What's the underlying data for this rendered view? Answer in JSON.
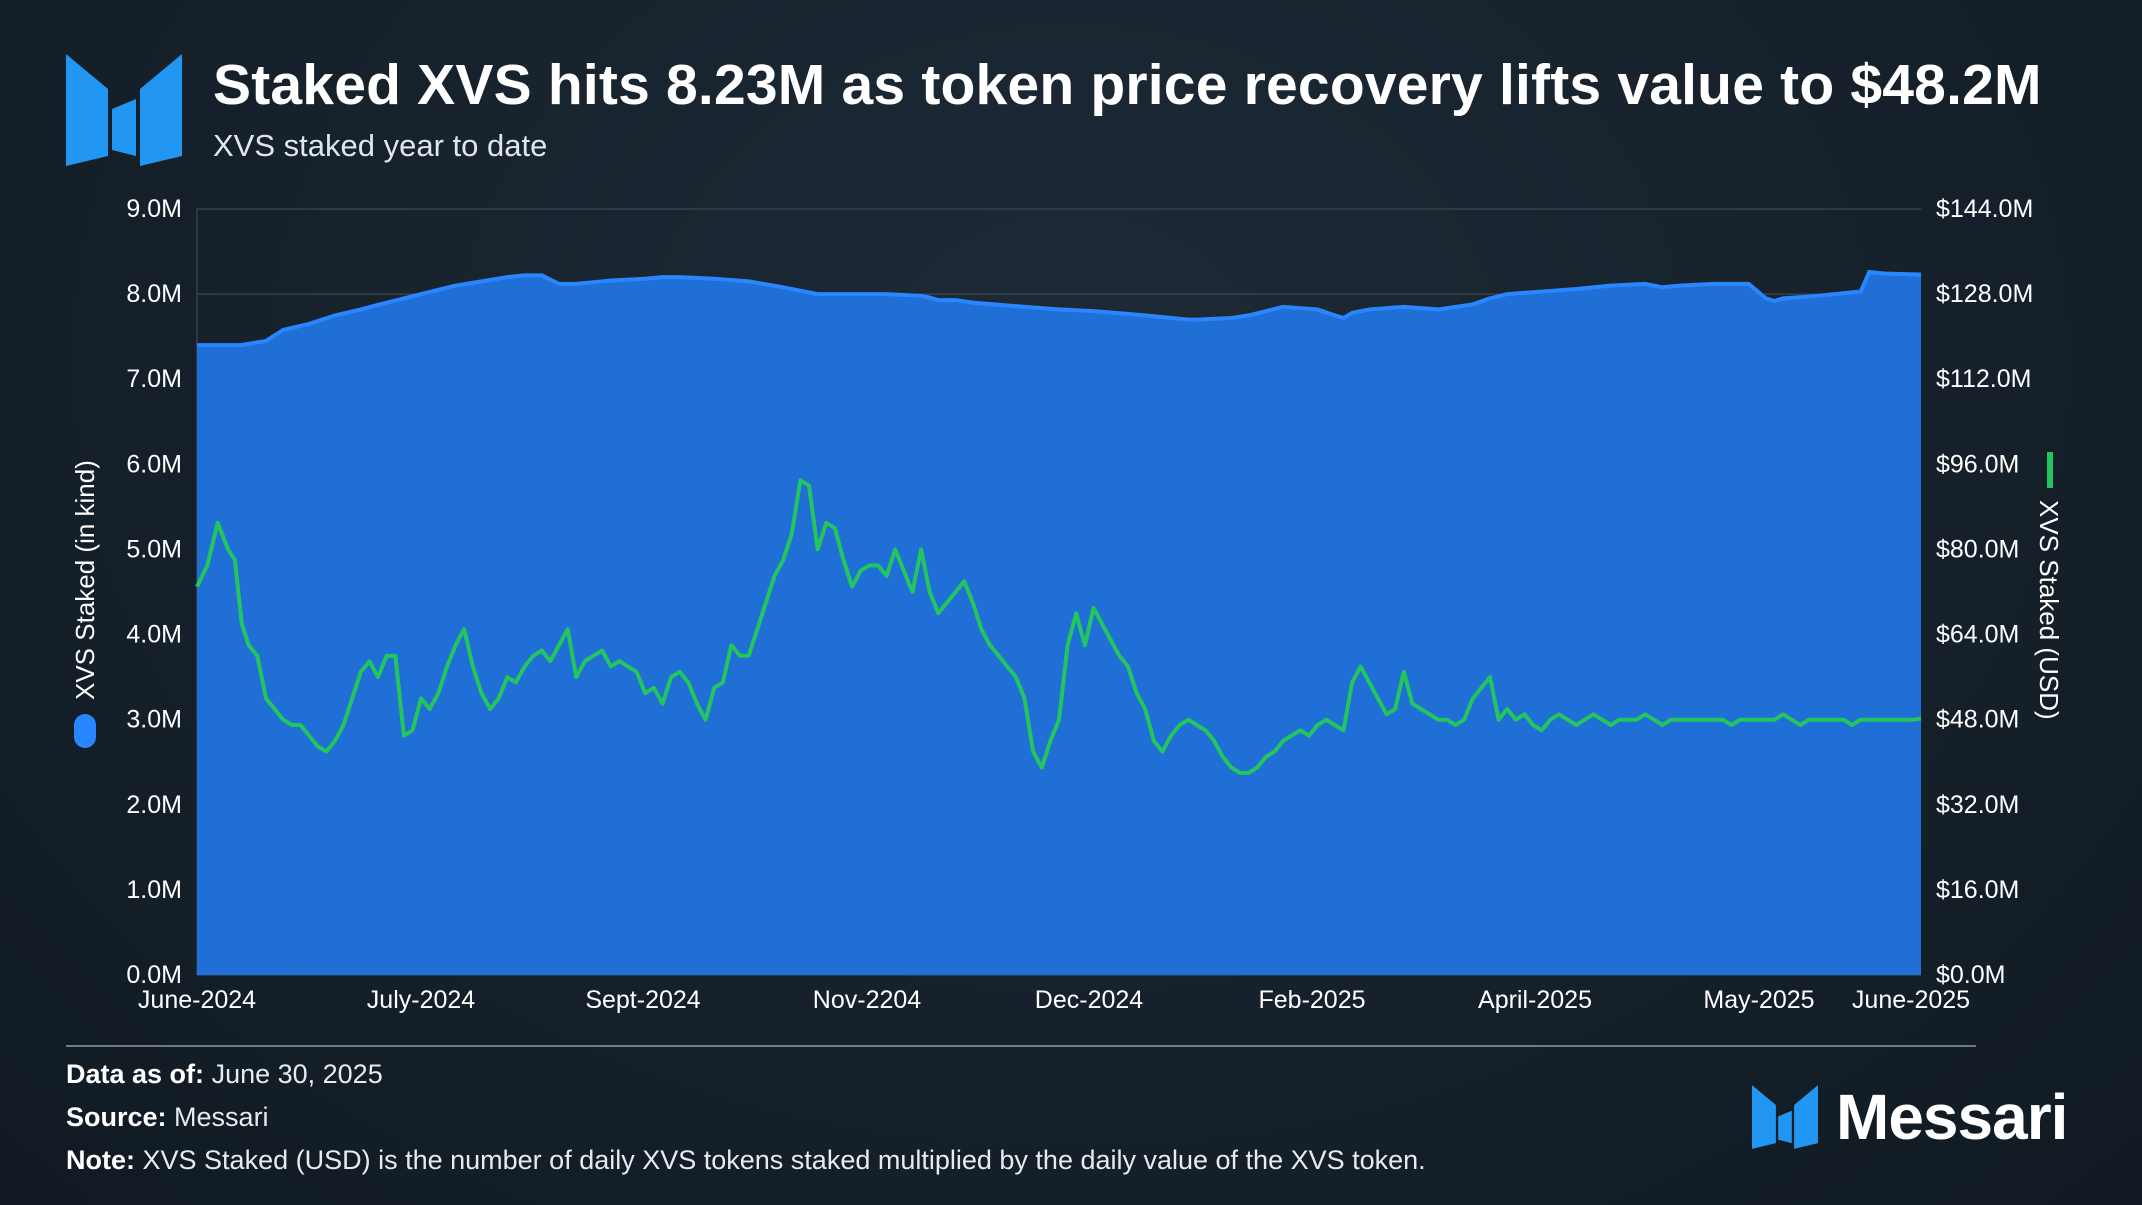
{
  "header": {
    "title": "Staked XVS hits 8.23M as token price recovery lifts value to $48.2M",
    "subtitle": "XVS staked year to date"
  },
  "footer": {
    "data_as_of_label": "Data as of:",
    "data_as_of_value": "June 30, 2025",
    "source_label": "Source:",
    "source_value": "Messari",
    "note_label": "Note:",
    "note_value": "XVS Staked (USD) is the number of daily XVS tokens staked multiplied by the daily value of the XVS token.",
    "brand_name": "Messari",
    "brand_logo_icon": "messari-logo-icon"
  },
  "colors": {
    "background": "#17222c",
    "area_fill": "#1f6fd6",
    "area_line": "#2a86ff",
    "usd_line": "#23c55e",
    "brand_blue": "#2196f3"
  },
  "chart_data": {
    "type": "area",
    "xlabels": [
      "June-2024",
      "July-2024",
      "Sept-2024",
      "Nov-2204",
      "Dec-2024",
      "Feb-2025",
      "April-2025",
      "May-2025",
      "June-2025"
    ],
    "y_left": {
      "label": "XVS Staked (in kind)",
      "ylim": [
        0,
        9000000
      ],
      "ticks": [
        "0.0M",
        "1.0M",
        "2.0M",
        "3.0M",
        "4.0M",
        "5.0M",
        "6.0M",
        "7.0M",
        "8.0M",
        "9.0M"
      ]
    },
    "y_right": {
      "label": "XVS Staked (USD)",
      "ylim": [
        0,
        144000000
      ],
      "ticks": [
        "$0.0M",
        "$16.0M",
        "$32.0M",
        "$48.0M",
        "$64.0M",
        "$80.0M",
        "$96.0M",
        "$112.0M",
        "$128.0M",
        "$144.0M"
      ]
    },
    "legend": [
      {
        "series": "XVS Staked (in kind)",
        "position": "left axis",
        "color": "#2a86ff"
      },
      {
        "series": "XVS Staked (USD)",
        "position": "right axis",
        "color": "#23c55e"
      }
    ],
    "grid": true,
    "series": [
      {
        "name": "XVS Staked (in kind)",
        "axis": "left",
        "type": "area",
        "x": [
          0,
          0.025,
          0.04,
          0.05,
          0.065,
          0.08,
          0.095,
          0.11,
          0.13,
          0.15,
          0.165,
          0.18,
          0.19,
          0.2,
          0.21,
          0.22,
          0.23,
          0.24,
          0.26,
          0.27,
          0.28,
          0.3,
          0.32,
          0.34,
          0.36,
          0.38,
          0.4,
          0.42,
          0.425,
          0.43,
          0.44,
          0.45,
          0.48,
          0.5,
          0.52,
          0.55,
          0.56,
          0.575,
          0.58,
          0.6,
          0.61,
          0.62,
          0.63,
          0.65,
          0.66,
          0.665,
          0.67,
          0.68,
          0.7,
          0.72,
          0.74,
          0.75,
          0.76,
          0.78,
          0.8,
          0.82,
          0.84,
          0.85,
          0.86,
          0.88,
          0.9,
          0.91,
          0.915,
          0.92,
          0.94,
          0.95,
          0.96,
          0.965,
          0.97,
          0.98,
          1.0
        ],
        "y": [
          7.4,
          7.4,
          7.45,
          7.58,
          7.65,
          7.75,
          7.82,
          7.9,
          8.0,
          8.1,
          8.15,
          8.2,
          8.22,
          8.22,
          8.12,
          8.12,
          8.14,
          8.16,
          8.18,
          8.2,
          8.2,
          8.18,
          8.15,
          8.08,
          8.0,
          8.0,
          8.0,
          7.98,
          7.96,
          7.93,
          7.93,
          7.9,
          7.85,
          7.82,
          7.8,
          7.75,
          7.73,
          7.7,
          7.7,
          7.72,
          7.75,
          7.8,
          7.85,
          7.82,
          7.75,
          7.72,
          7.78,
          7.82,
          7.85,
          7.82,
          7.88,
          7.95,
          8.0,
          8.03,
          8.06,
          8.1,
          8.12,
          8.08,
          8.1,
          8.12,
          8.12,
          7.95,
          7.92,
          7.95,
          7.98,
          8.0,
          8.02,
          8.03,
          8.26,
          8.24,
          8.23
        ]
      },
      {
        "name": "XVS Staked (USD)",
        "axis": "right",
        "type": "line",
        "x": [
          0,
          0.006,
          0.012,
          0.018,
          0.022,
          0.026,
          0.03,
          0.035,
          0.04,
          0.045,
          0.05,
          0.055,
          0.06,
          0.065,
          0.07,
          0.075,
          0.08,
          0.085,
          0.09,
          0.095,
          0.1,
          0.105,
          0.11,
          0.115,
          0.12,
          0.125,
          0.13,
          0.135,
          0.14,
          0.145,
          0.15,
          0.155,
          0.16,
          0.165,
          0.17,
          0.175,
          0.18,
          0.185,
          0.19,
          0.195,
          0.2,
          0.205,
          0.21,
          0.215,
          0.22,
          0.225,
          0.23,
          0.235,
          0.24,
          0.245,
          0.25,
          0.255,
          0.26,
          0.265,
          0.27,
          0.275,
          0.28,
          0.285,
          0.29,
          0.295,
          0.3,
          0.305,
          0.31,
          0.315,
          0.32,
          0.325,
          0.33,
          0.335,
          0.34,
          0.345,
          0.35,
          0.355,
          0.36,
          0.365,
          0.37,
          0.375,
          0.38,
          0.385,
          0.39,
          0.395,
          0.4,
          0.405,
          0.41,
          0.415,
          0.42,
          0.425,
          0.43,
          0.435,
          0.44,
          0.445,
          0.45,
          0.455,
          0.46,
          0.465,
          0.47,
          0.475,
          0.48,
          0.485,
          0.49,
          0.495,
          0.5,
          0.505,
          0.51,
          0.515,
          0.52,
          0.525,
          0.53,
          0.535,
          0.54,
          0.545,
          0.55,
          0.555,
          0.56,
          0.565,
          0.57,
          0.575,
          0.58,
          0.585,
          0.59,
          0.595,
          0.6,
          0.605,
          0.61,
          0.615,
          0.62,
          0.625,
          0.63,
          0.635,
          0.64,
          0.645,
          0.65,
          0.655,
          0.66,
          0.665,
          0.67,
          0.675,
          0.68,
          0.685,
          0.69,
          0.695,
          0.7,
          0.705,
          0.71,
          0.715,
          0.72,
          0.725,
          0.73,
          0.735,
          0.74,
          0.745,
          0.75,
          0.755,
          0.76,
          0.765,
          0.77,
          0.775,
          0.78,
          0.785,
          0.79,
          0.795,
          0.8,
          0.805,
          0.81,
          0.815,
          0.82,
          0.825,
          0.83,
          0.835,
          0.84,
          0.845,
          0.85,
          0.855,
          0.86,
          0.865,
          0.87,
          0.875,
          0.88,
          0.885,
          0.89,
          0.895,
          0.9,
          0.905,
          0.91,
          0.915,
          0.92,
          0.925,
          0.93,
          0.935,
          0.94,
          0.945,
          0.95,
          0.955,
          0.96,
          0.965,
          0.97,
          0.975,
          0.98,
          0.985,
          0.99,
          0.995,
          1.0
        ],
        "y": [
          73,
          77,
          85,
          80,
          78,
          66,
          62,
          60,
          52,
          50,
          48,
          47,
          47,
          45,
          43,
          42,
          44,
          47,
          52,
          57,
          59,
          56,
          60,
          60,
          45,
          46,
          52,
          50,
          53,
          58,
          62,
          65,
          58,
          53,
          50,
          52,
          56,
          55,
          58,
          60,
          61,
          59,
          62,
          65,
          56,
          59,
          60,
          61,
          58,
          59,
          58,
          57,
          53,
          54,
          51,
          56,
          57,
          55,
          51,
          48,
          54,
          55,
          62,
          60,
          60,
          65,
          70,
          75,
          78,
          83,
          93,
          92,
          80,
          85,
          84,
          78,
          73,
          76,
          77,
          77,
          75,
          80,
          76,
          72,
          80,
          72,
          68,
          70,
          72,
          74,
          70,
          65,
          62,
          60,
          58,
          56,
          52,
          42,
          39,
          44,
          48,
          62,
          68,
          62,
          69,
          66,
          63,
          60,
          58,
          53,
          50,
          44,
          42,
          45,
          47,
          48,
          47,
          46,
          44,
          41,
          39,
          38,
          38,
          39,
          41,
          42,
          44,
          45,
          46,
          45,
          47,
          48,
          47,
          46,
          55,
          58,
          55,
          52,
          49,
          50,
          57,
          51,
          50,
          49,
          48,
          48,
          47,
          48,
          52,
          54,
          56,
          48,
          50,
          48,
          49,
          47,
          46,
          48,
          49,
          48,
          47,
          48,
          49,
          48,
          47,
          48,
          48,
          48,
          49,
          48,
          47,
          48,
          48,
          48,
          48,
          48,
          48,
          48,
          47,
          48,
          48,
          48,
          48,
          48,
          49,
          48,
          47,
          48,
          48,
          48,
          48,
          48,
          47,
          48,
          48,
          48,
          48,
          48,
          48,
          48,
          48.2
        ]
      }
    ]
  }
}
